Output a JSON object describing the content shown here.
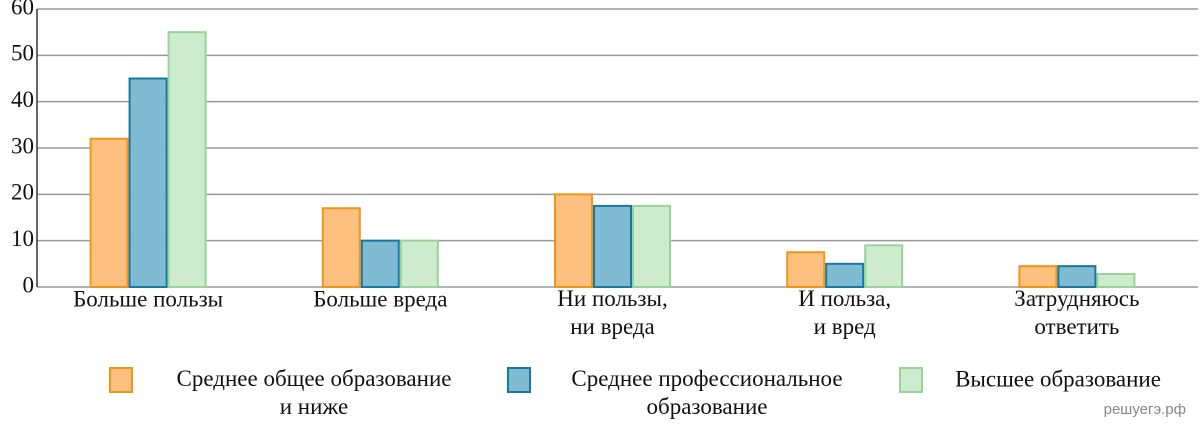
{
  "chart_data": {
    "type": "bar",
    "categories": [
      "Больше пользы",
      "Больше вреда",
      "Ни пользы,\nни вреда",
      "И польза,\nи вред",
      "Затрудняюсь\nответить"
    ],
    "series": [
      {
        "name": "Среднее общее образование\nи ниже",
        "color": "#fdc07f",
        "edge": "#f0951c",
        "values": [
          32,
          17,
          20,
          7.5,
          4.5
        ]
      },
      {
        "name": "Среднее профессиональное\nобразование",
        "color": "#7fbcd3",
        "edge": "#1878a0",
        "values": [
          45,
          10,
          17.5,
          5,
          4.5
        ]
      },
      {
        "name": "Высшее образование",
        "color": "#cdebcd",
        "edge": "#98d498",
        "values": [
          55,
          10,
          17.5,
          9,
          2.8
        ]
      }
    ],
    "ylim": [
      0,
      60
    ],
    "yticks": [
      0,
      10,
      20,
      30,
      40,
      50,
      60
    ],
    "grid": true,
    "watermark": "решуегэ.рф"
  }
}
